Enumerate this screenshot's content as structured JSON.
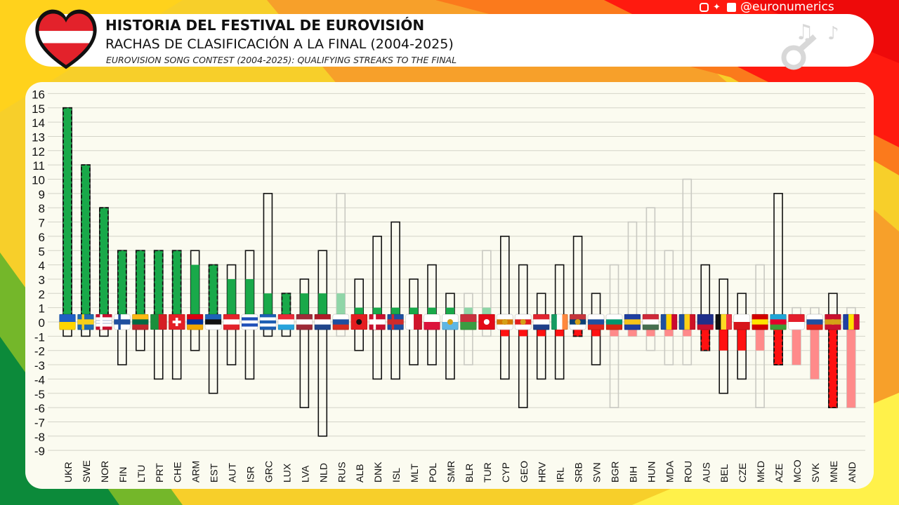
{
  "header": {
    "title": "HISTORIA DEL FESTIVAL DE EUROVISIÓN",
    "subtitle": "RACHAS DE CLASIFICACIÓN A LA FINAL (2004-2025)",
    "subtitle_en": "EUROVISION SONG CONTEST (2004-2025): QUALIFYING STREAKS TO THE FINAL"
  },
  "social": {
    "handle": "@euronumerics",
    "icons": [
      "instagram-icon",
      "bluesky-icon",
      "facebook-icon"
    ]
  },
  "colors": {
    "green": "#19a94a",
    "light_green": "#8fd6a7",
    "red": "#ff1111",
    "light_red": "#ff8a8a",
    "grid": "#d4d4c8"
  },
  "chart_data": {
    "type": "bar",
    "ylim": [
      -9,
      16
    ],
    "yticks": [
      16,
      15,
      14,
      13,
      12,
      11,
      10,
      9,
      8,
      7,
      6,
      5,
      4,
      3,
      2,
      1,
      0,
      -1,
      -2,
      -3,
      -4,
      -5,
      -6,
      -7,
      -8,
      -9
    ],
    "grid": true,
    "categories": [
      "UKR",
      "SWE",
      "NOR",
      "FIN",
      "LTU",
      "PRT",
      "CHE",
      "ARM",
      "EST",
      "AUT",
      "ISR",
      "GRC",
      "LUX",
      "LVA",
      "NLD",
      "RUS",
      "ALB",
      "DNK",
      "ISL",
      "MLT",
      "POL",
      "SMR",
      "BLR",
      "TUR",
      "CYP",
      "GEO",
      "HRV",
      "IRL",
      "SRB",
      "SVN",
      "BGR",
      "BIH",
      "HUN",
      "MDA",
      "ROU",
      "AUS",
      "BEL",
      "CZE",
      "MKD",
      "AZE",
      "MCO",
      "SVK",
      "MNE",
      "AND"
    ],
    "current_streak": [
      15,
      11,
      8,
      5,
      5,
      5,
      5,
      4,
      4,
      3,
      3,
      2,
      2,
      2,
      2,
      2,
      1,
      1,
      1,
      1,
      1,
      1,
      1,
      1,
      -1,
      -1,
      -1,
      -1,
      -1,
      -1,
      -1,
      -1,
      -1,
      -1,
      -1,
      -2,
      -2,
      -2,
      -2,
      -3,
      -3,
      -4,
      -6,
      -6
    ],
    "max_qualifying_streak": [
      15,
      11,
      8,
      5,
      5,
      5,
      5,
      5,
      4,
      4,
      5,
      9,
      2,
      3,
      5,
      9,
      3,
      6,
      7,
      3,
      4,
      2,
      2,
      5,
      6,
      4,
      2,
      4,
      6,
      2,
      4,
      7,
      8,
      5,
      10,
      4,
      3,
      2,
      4,
      9,
      1,
      1,
      2,
      1
    ],
    "max_non_qualifying_streak": [
      -1,
      -1,
      -1,
      -3,
      -2,
      -4,
      -4,
      -2,
      -5,
      -3,
      -4,
      -1,
      -1,
      -6,
      -8,
      -1,
      -2,
      -4,
      -4,
      -3,
      -3,
      -4,
      -3,
      -1,
      -4,
      -6,
      -4,
      -4,
      -1,
      -3,
      -6,
      -1,
      -2,
      -3,
      -3,
      -2,
      -5,
      -4,
      -6,
      -3,
      -3,
      -4,
      -6,
      -6
    ],
    "active_in_2025": [
      true,
      true,
      true,
      true,
      true,
      true,
      true,
      true,
      true,
      true,
      true,
      true,
      true,
      true,
      true,
      false,
      true,
      true,
      true,
      true,
      true,
      true,
      false,
      false,
      true,
      true,
      true,
      true,
      true,
      true,
      false,
      false,
      false,
      false,
      false,
      true,
      true,
      true,
      false,
      true,
      false,
      false,
      true,
      false
    ]
  }
}
